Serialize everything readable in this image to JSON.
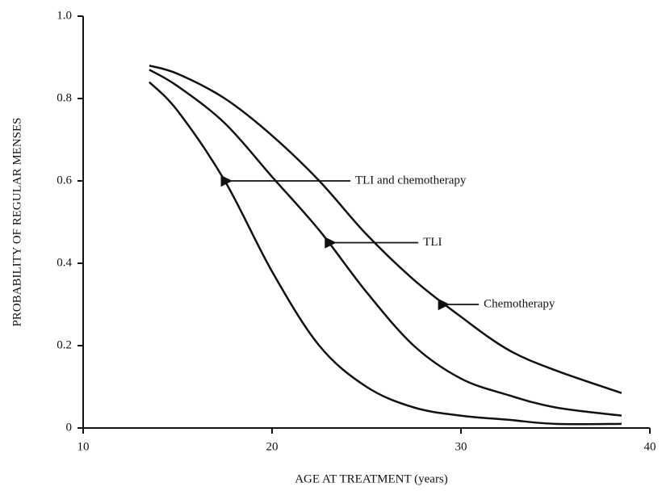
{
  "chart_data": {
    "type": "line",
    "xlabel": "AGE AT TREATMENT (years)",
    "ylabel": "PROBABILITY OF REGULAR MENSES",
    "x": [
      13.5,
      15,
      17.5,
      20,
      22.5,
      25,
      27.5,
      30,
      32.5,
      35,
      38.5
    ],
    "series": [
      {
        "name": "TLI and chemotherapy",
        "color": "#111111",
        "values": [
          0.84,
          0.77,
          0.6,
          0.38,
          0.2,
          0.1,
          0.05,
          0.03,
          0.02,
          0.01,
          0.01
        ]
      },
      {
        "name": "TLI",
        "color": "#111111",
        "values": [
          0.87,
          0.83,
          0.74,
          0.61,
          0.48,
          0.33,
          0.2,
          0.12,
          0.08,
          0.05,
          0.03
        ]
      },
      {
        "name": "Chemotherapy",
        "color": "#111111",
        "values": [
          0.88,
          0.86,
          0.8,
          0.71,
          0.6,
          0.47,
          0.36,
          0.27,
          0.19,
          0.14,
          0.085
        ]
      }
    ],
    "annotations": [
      {
        "text": "TLI and chemotherapy",
        "xy": [
          17.5,
          0.6
        ],
        "xytext": [
          24.4,
          0.6
        ]
      },
      {
        "text": "TLI",
        "xy": [
          23,
          0.45
        ],
        "xytext": [
          28,
          0.45
        ]
      },
      {
        "text": "Chemotherapy",
        "xy": [
          29,
          0.3
        ],
        "xytext": [
          31.2,
          0.3
        ]
      }
    ],
    "xlim": [
      10,
      40
    ],
    "ylim": [
      0,
      1
    ],
    "xticks": [
      10,
      20,
      30,
      40
    ],
    "yticks": [
      0,
      0.2,
      0.4,
      0.6,
      0.8,
      {
        "value": 1,
        "label": "1.0"
      }
    ],
    "grid": false
  }
}
